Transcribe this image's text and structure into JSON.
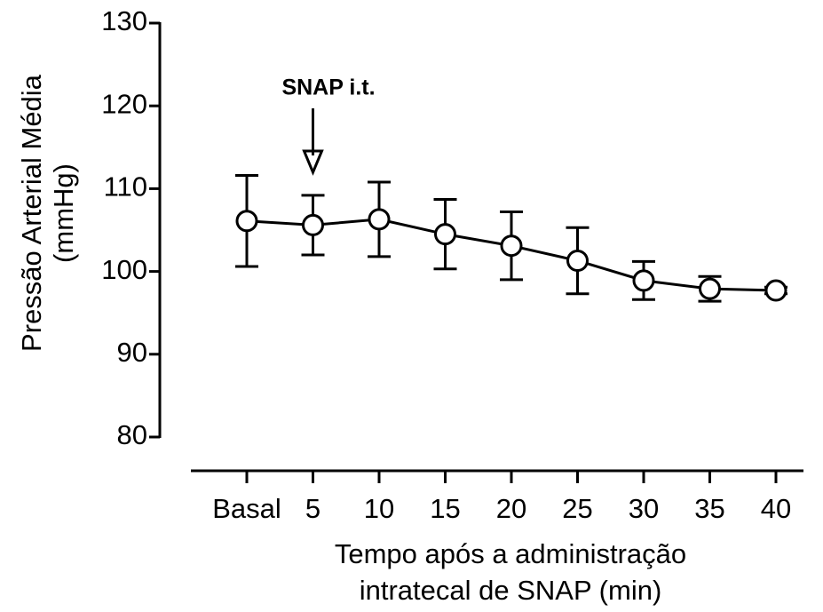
{
  "chart_data": {
    "type": "line",
    "ylabel": [
      "Pressão Arterial Média",
      "(mmHg)"
    ],
    "xlabel": [
      "Tempo após a administração",
      "intratecal de SNAP (min)"
    ],
    "annotation": "SNAP i.t.",
    "categories": [
      "Basal",
      "5",
      "10",
      "15",
      "20",
      "25",
      "30",
      "35",
      "40"
    ],
    "series": [
      {
        "name": null,
        "color": "#000000",
        "values": [
          106.1,
          105.6,
          106.3,
          104.5,
          103.1,
          101.3,
          98.9,
          97.9,
          97.7
        ],
        "errors": [
          5.5,
          3.6,
          4.5,
          4.2,
          4.1,
          4.0,
          2.3,
          1.5,
          0.4
        ]
      }
    ],
    "ylim": [
      80,
      130
    ],
    "yticks": [
      80,
      90,
      100,
      110,
      120,
      130
    ],
    "grid": false
  }
}
